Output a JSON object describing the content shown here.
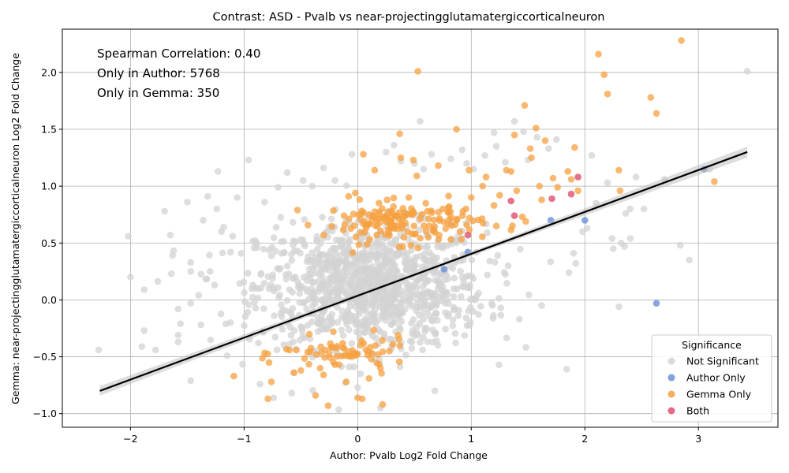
{
  "chart_data": {
    "type": "scatter",
    "title": "Contrast: ASD - Pvalb vs near-projectingglutamatergiccorticalneuron",
    "xlabel": "Author: Pvalb Log2 Fold Change",
    "ylabel": "Gemma: near-projectingglutamatergiccorticalneuron Log2 Fold Change",
    "xlim": [
      -2.6,
      3.7
    ],
    "ylim": [
      -1.12,
      2.38
    ],
    "xticks": [
      -2,
      -1,
      0,
      1,
      2,
      3
    ],
    "yticks": [
      -1.0,
      -0.5,
      0.0,
      0.5,
      1.0,
      1.5,
      2.0
    ],
    "xtick_labels": [
      "−2",
      "−1",
      "0",
      "1",
      "2",
      "3"
    ],
    "ytick_labels": [
      "−1.0",
      "−0.5",
      "0.0",
      "0.5",
      "1.0",
      "1.5",
      "2.0"
    ],
    "grid": true,
    "annotations": [
      "Spearman Correlation: 0.40",
      "Only in Author: 5768",
      "Only in Gemma: 350"
    ],
    "legend": {
      "title": "Significance",
      "placement": "lower-right",
      "entries": [
        "Not Significant",
        "Author Only",
        "Gemma Only",
        "Both"
      ]
    },
    "regression_line": {
      "x": [
        -2.27,
        3.43
      ],
      "y": [
        -0.8,
        1.3
      ]
    },
    "series": [
      {
        "name": "Not Significant",
        "color": "#d3d3d3",
        "points": [
          [
            -2.28,
            -0.44
          ],
          [
            -2.02,
            0.56
          ],
          [
            -2.0,
            0.2
          ],
          [
            -1.88,
            0.09
          ],
          [
            -1.88,
            -0.27
          ],
          [
            -1.9,
            -0.41
          ],
          [
            -1.78,
            -0.44
          ],
          [
            -1.7,
            0.78
          ],
          [
            -1.65,
            0.57
          ],
          [
            -1.63,
            0.39
          ],
          [
            -1.64,
            0.23
          ],
          [
            -1.58,
            -0.08
          ],
          [
            -1.56,
            -0.21
          ],
          [
            -1.58,
            -0.31
          ],
          [
            -1.58,
            -0.37
          ],
          [
            -1.5,
            0.86
          ],
          [
            -1.47,
            0.33
          ],
          [
            -1.47,
            0.25
          ],
          [
            -1.47,
            -0.03
          ],
          [
            -1.47,
            -0.71
          ],
          [
            -1.4,
            0.04
          ],
          [
            -1.38,
            -0.22
          ],
          [
            -1.36,
            0.7
          ],
          [
            -1.32,
            0.91
          ],
          [
            -1.3,
            0.25
          ],
          [
            -1.26,
            0.13
          ],
          [
            -1.24,
            0.8
          ],
          [
            -1.23,
            1.13
          ],
          [
            -1.2,
            0.6
          ],
          [
            -1.18,
            0.64
          ],
          [
            -1.16,
            -0.21
          ],
          [
            -1.15,
            -0.49
          ],
          [
            -1.12,
            0.42
          ],
          [
            -1.1,
            0.56
          ],
          [
            -1.06,
            0.9
          ],
          [
            -0.96,
            1.23
          ],
          [
            -0.9,
            0.52
          ],
          [
            -0.86,
            -0.74
          ],
          [
            -0.82,
            0.86
          ],
          [
            -0.78,
            0.1
          ],
          [
            -0.74,
            -0.86
          ],
          [
            -0.7,
            0.99
          ],
          [
            -0.62,
            1.12
          ],
          [
            -0.58,
            -0.82
          ],
          [
            -0.48,
            1.05
          ],
          [
            -0.4,
            1.0
          ],
          [
            -0.3,
            1.16
          ],
          [
            -0.2,
            1.05
          ],
          [
            -0.05,
            1.28
          ],
          [
            0.0,
            -0.77
          ],
          [
            0.2,
            -0.95
          ],
          [
            0.25,
            1.3
          ],
          [
            0.32,
            1.36
          ],
          [
            0.38,
            1.22
          ],
          [
            0.5,
            1.2
          ],
          [
            0.55,
            1.57
          ],
          [
            0.58,
            1.15
          ],
          [
            0.65,
            1.28
          ],
          [
            0.68,
            -0.8
          ],
          [
            0.82,
            1.24
          ],
          [
            0.92,
            1.32
          ],
          [
            0.96,
            1.2
          ],
          [
            1.02,
            1.15
          ],
          [
            1.12,
            1.27
          ],
          [
            1.2,
            1.47
          ],
          [
            1.22,
            1.35
          ],
          [
            1.26,
            -0.07
          ],
          [
            1.3,
            1.21
          ],
          [
            1.38,
            1.57
          ],
          [
            1.46,
            1.48
          ],
          [
            1.5,
            1.23
          ],
          [
            1.58,
            1.43
          ],
          [
            1.68,
            1.33
          ],
          [
            1.62,
            -0.05
          ],
          [
            1.75,
            1.41
          ],
          [
            1.84,
            -0.61
          ],
          [
            1.86,
            0.24
          ],
          [
            1.9,
            0.41
          ],
          [
            1.92,
            0.32
          ],
          [
            1.98,
            0.6
          ],
          [
            2.02,
            0.63
          ],
          [
            2.06,
            1.27
          ],
          [
            2.1,
            0.85
          ],
          [
            2.2,
            1.03
          ],
          [
            2.24,
            0.54
          ],
          [
            2.25,
            0.45
          ],
          [
            2.3,
            -0.06
          ],
          [
            2.32,
            0.5
          ],
          [
            2.35,
            0.47
          ],
          [
            2.36,
            0.76
          ],
          [
            2.4,
            0.54
          ],
          [
            2.4,
            0.8
          ],
          [
            2.45,
            1.08
          ],
          [
            2.52,
            0.8
          ],
          [
            2.7,
            1.06
          ],
          [
            2.84,
            0.48
          ],
          [
            2.92,
            0.35
          ],
          [
            3.1,
            1.15
          ],
          [
            3.43,
            2.01
          ],
          [
            -0.3,
            0.4
          ],
          [
            -0.1,
            0.3
          ],
          [
            0.1,
            0.1
          ],
          [
            0.3,
            0.2
          ],
          [
            -0.5,
            0.1
          ],
          [
            0.5,
            0.3
          ]
        ],
        "cluster": {
          "count": 1100,
          "x_mean": 0.12,
          "x_sd": 0.5,
          "y_mean": 0.12,
          "y_sd": 0.27
        }
      },
      {
        "name": "Author Only",
        "color": "#6a8fd8",
        "points": [
          [
            0.76,
            0.27
          ],
          [
            0.97,
            0.42
          ],
          [
            1.7,
            0.7
          ],
          [
            2.0,
            0.7
          ],
          [
            2.63,
            -0.03
          ],
          [
            3.05,
            1.15
          ]
        ]
      },
      {
        "name": "Gemma Only",
        "color": "#f5a040",
        "points": [
          [
            0.53,
            2.01
          ],
          [
            2.12,
            2.16
          ],
          [
            2.17,
            1.98
          ],
          [
            2.2,
            1.81
          ],
          [
            2.58,
            1.78
          ],
          [
            2.63,
            1.64
          ],
          [
            2.85,
            2.28
          ],
          [
            1.47,
            1.71
          ],
          [
            0.37,
            1.46
          ],
          [
            0.87,
            1.5
          ],
          [
            1.57,
            1.51
          ],
          [
            1.52,
            1.33
          ],
          [
            1.65,
            1.4
          ],
          [
            1.91,
            1.34
          ],
          [
            1.38,
            1.45
          ],
          [
            1.53,
            1.25
          ],
          [
            0.05,
            1.28
          ],
          [
            0.49,
            1.23
          ],
          [
            0.38,
            1.25
          ],
          [
            0.15,
            1.14
          ],
          [
            0.52,
            1.09
          ],
          [
            0.71,
            1.18
          ],
          [
            0.98,
            1.14
          ],
          [
            1.13,
            1.08
          ],
          [
            1.35,
            1.13
          ],
          [
            1.31,
            1.14
          ],
          [
            1.85,
            1.13
          ],
          [
            2.3,
            1.14
          ],
          [
            2.31,
            0.96
          ],
          [
            3.14,
            1.04
          ],
          [
            -0.53,
            0.79
          ],
          [
            -0.02,
            0.94
          ],
          [
            -0.08,
            0.91
          ],
          [
            0.1,
            0.75
          ],
          [
            0.3,
            0.78
          ],
          [
            0.6,
            0.85
          ],
          [
            0.75,
            0.8
          ],
          [
            1.0,
            0.9
          ],
          [
            1.1,
            1.0
          ],
          [
            1.2,
            0.83
          ],
          [
            1.25,
            0.92
          ],
          [
            1.4,
            0.96
          ],
          [
            1.45,
            0.73
          ],
          [
            1.48,
            0.69
          ],
          [
            1.6,
            1.0
          ],
          [
            1.62,
            0.88
          ],
          [
            1.72,
            1.07
          ],
          [
            1.76,
            0.99
          ],
          [
            1.94,
            0.96
          ],
          [
            1.88,
            1.06
          ],
          [
            0.63,
            0.65
          ],
          [
            -0.12,
            0.74
          ],
          [
            0.48,
            0.58
          ],
          [
            0.82,
            0.53
          ],
          [
            0.9,
            0.6
          ],
          [
            0.45,
            0.9
          ],
          [
            -1.09,
            -0.67
          ],
          [
            -0.79,
            -0.87
          ],
          [
            -0.76,
            -0.72
          ],
          [
            -0.78,
            -0.55
          ],
          [
            -0.56,
            -0.64
          ],
          [
            -0.5,
            -0.62
          ],
          [
            -0.44,
            -0.46
          ],
          [
            -0.37,
            -0.84
          ],
          [
            -0.3,
            -0.66
          ],
          [
            -0.26,
            -0.93
          ],
          [
            -0.2,
            -0.57
          ],
          [
            -0.1,
            -0.72
          ],
          [
            0.0,
            -0.86
          ],
          [
            0.04,
            -0.87
          ],
          [
            0.1,
            -0.69
          ],
          [
            0.12,
            -0.52
          ],
          [
            0.18,
            -0.48
          ],
          [
            0.2,
            -0.6
          ],
          [
            0.28,
            -0.45
          ],
          [
            0.22,
            -0.92
          ],
          [
            -0.33,
            -0.6
          ],
          [
            -0.6,
            -0.44
          ]
        ],
        "clusters": [
          {
            "count": 150,
            "x_mean": 0.4,
            "x_sd": 0.35,
            "y_mean": 0.68,
            "y_sd": 0.09
          },
          {
            "count": 60,
            "x_mean": -0.1,
            "x_sd": 0.28,
            "y_mean": -0.47,
            "y_sd": 0.07
          }
        ]
      },
      {
        "name": "Both",
        "color": "#e0506e",
        "points": [
          [
            1.35,
            0.87
          ],
          [
            1.38,
            0.74
          ],
          [
            1.71,
            0.89
          ],
          [
            1.88,
            0.93
          ],
          [
            1.94,
            1.08
          ],
          [
            0.97,
            0.57
          ]
        ]
      }
    ]
  }
}
